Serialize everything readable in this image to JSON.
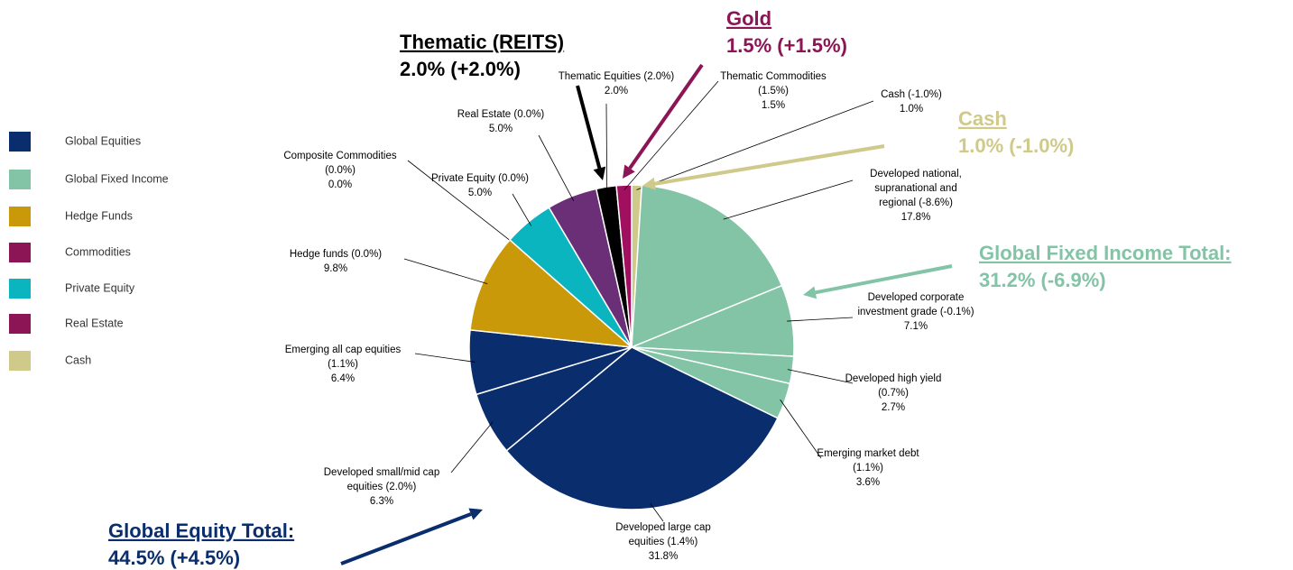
{
  "chart_data": {
    "type": "pie",
    "labels": [
      [
        "Cash (-1.0%)"
      ],
      [
        "Developed national,",
        "supranational and",
        "regional (-8.6%)"
      ],
      [
        "Developed corporate",
        "investment grade (-0.1%)"
      ],
      [
        "Developed high yield",
        "(0.7%)"
      ],
      [
        "Emerging market debt",
        "(1.1%)"
      ],
      [
        "Developed large cap",
        "equities (1.4%)"
      ],
      [
        "Developed small/mid cap",
        "equities (2.0%)"
      ],
      [
        "Emerging all cap equities",
        "(1.1%)"
      ],
      [
        "Hedge funds (0.0%)"
      ],
      [
        "Composite Commodities",
        "(0.0%)"
      ],
      [
        "Private Equity (0.0%)"
      ],
      [
        "Real Estate (0.0%)"
      ],
      [
        "Thematic Equities (2.0%)"
      ],
      [
        "Thematic Commodities",
        "(1.5%)"
      ]
    ],
    "values": [
      1.0,
      17.8,
      7.1,
      2.7,
      3.6,
      31.8,
      6.3,
      6.4,
      9.8,
      0.0,
      5.0,
      5.0,
      2.0,
      1.5
    ],
    "value_labels": [
      "1.0%",
      "17.8%",
      "7.1%",
      "2.7%",
      "3.6%",
      "31.8%",
      "6.3%",
      "6.4%",
      "9.8%",
      "0.0%",
      "5.0%",
      "5.0%",
      "2.0%",
      "1.5%"
    ],
    "colors": [
      "#cfc98a",
      "#82c4a5",
      "#82c4a5",
      "#82c4a5",
      "#82c4a5",
      "#0a2d6e",
      "#0a2d6e",
      "#0a2d6e",
      "#c9990a",
      "#8c1556",
      "#0bb5c0",
      "#6b2f78",
      "#000000",
      "#a0105e"
    ],
    "legend": [
      {
        "name": "Global Equities",
        "color": "#0a2d6e"
      },
      {
        "name": "Global Fixed Income",
        "color": "#82c4a5"
      },
      {
        "name": "Hedge Funds",
        "color": "#c9990a"
      },
      {
        "name": "Commodities",
        "color": "#8c1556"
      },
      {
        "name": "Private Equity",
        "color": "#0bb5c0"
      },
      {
        "name": "Real Estate",
        "color": "#8c1556"
      },
      {
        "name": "Cash",
        "color": "#cfc98a"
      }
    ],
    "annotations": [
      {
        "title": "Thematic (REITS)",
        "text": "2.0% (+2.0%)",
        "color": "#000000"
      },
      {
        "title": "Gold",
        "text": "1.5% (+1.5%)",
        "color": "#8c1556"
      },
      {
        "title": "Cash",
        "text": "1.0% (-1.0%)",
        "color": "#cfc98a"
      },
      {
        "title": "Global Fixed Income Total:",
        "text": "31.2% (-6.9%)",
        "color": "#82c4a5"
      },
      {
        "title": "Global Equity Total:",
        "text": "44.5% (+4.5%)",
        "color": "#0a2d6e"
      }
    ]
  }
}
